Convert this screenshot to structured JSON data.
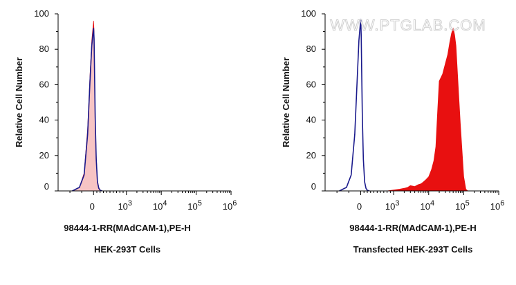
{
  "watermark": "WWW.PTGLAB.COM",
  "colors": {
    "isotype_fill": "#f7c4c4",
    "isotype_line": "#1a1a8c",
    "sample_fill": "#e81010",
    "sample_line": "#1a1a8c",
    "axis": "#000000"
  },
  "chart_data": [
    {
      "type": "area",
      "title": "",
      "caption": "HEK-293T Cells",
      "xlabel": "98444-1-RR(MAdCAM-1),PE-H",
      "ylabel": "Relative Cell Number",
      "x_scale": "biexponential",
      "xlim": [
        -300,
        1000000
      ],
      "ylim": [
        0,
        100
      ],
      "y_ticks": [
        "0",
        "20",
        "40",
        "60",
        "80",
        "100"
      ],
      "x_ticks": [
        {
          "base": "0",
          "exp": ""
        },
        {
          "base": "10",
          "exp": "3"
        },
        {
          "base": "10",
          "exp": "4"
        },
        {
          "base": "10",
          "exp": "5"
        },
        {
          "base": "10",
          "exp": "6"
        }
      ],
      "series": [
        {
          "style": "filled-red",
          "x": [
            -180,
            -120,
            -80,
            -50,
            -30,
            -15,
            0,
            15,
            30,
            50,
            80,
            120,
            160,
            200,
            260
          ],
          "y": [
            0,
            2,
            10,
            35,
            65,
            85,
            96,
            90,
            70,
            45,
            20,
            6,
            2,
            0.5,
            0
          ]
        },
        {
          "style": "filled-pink",
          "x": [
            -180,
            -120,
            -80,
            -50,
            -30,
            -15,
            0,
            15,
            30,
            50,
            80,
            120,
            160,
            200,
            260
          ],
          "y": [
            0,
            2,
            9,
            32,
            62,
            82,
            92,
            86,
            67,
            42,
            18,
            5,
            1.5,
            0.4,
            0
          ]
        },
        {
          "style": "outline",
          "x": [
            -180,
            -120,
            -80,
            -50,
            -30,
            -15,
            0,
            15,
            30,
            50,
            80,
            120,
            160,
            200,
            260
          ],
          "y": [
            0,
            2,
            9,
            32,
            62,
            82,
            92,
            86,
            67,
            42,
            18,
            5,
            1.5,
            0.4,
            0
          ]
        }
      ]
    },
    {
      "type": "area",
      "title": "",
      "caption": "Transfected HEK-293T Cells",
      "xlabel": "98444-1-RR(MAdCAM-1),PE-H",
      "ylabel": "Relative Cell Number",
      "x_scale": "biexponential",
      "xlim": [
        -300,
        1000000
      ],
      "ylim": [
        0,
        100
      ],
      "y_ticks": [
        "0",
        "20",
        "40",
        "60",
        "80",
        "100"
      ],
      "x_ticks": [
        {
          "base": "0",
          "exp": ""
        },
        {
          "base": "10",
          "exp": "3"
        },
        {
          "base": "10",
          "exp": "4"
        },
        {
          "base": "10",
          "exp": "5"
        },
        {
          "base": "10",
          "exp": "6"
        }
      ],
      "series": [
        {
          "style": "filled-red",
          "x": [
            800,
            1000,
            1500,
            2000,
            2500,
            3000,
            4000,
            5000,
            6000,
            7000,
            8000,
            10000,
            12000,
            14000,
            16000,
            18000,
            20000,
            25000,
            30000,
            35000,
            40000,
            45000,
            50000,
            55000,
            60000,
            70000,
            80000,
            90000,
            100000,
            115000,
            130000
          ],
          "y": [
            0,
            0.5,
            1,
            1.5,
            2,
            3,
            2.5,
            3.5,
            4,
            5,
            6,
            8,
            12,
            17,
            25,
            45,
            62,
            66,
            72,
            77,
            84,
            89,
            92,
            88,
            82,
            58,
            38,
            22,
            8,
            1,
            0
          ]
        },
        {
          "style": "outline",
          "x": [
            -180,
            -120,
            -80,
            -50,
            -30,
            -15,
            0,
            15,
            30,
            50,
            80,
            120,
            160,
            200,
            260
          ],
          "y": [
            0,
            2,
            9,
            32,
            62,
            85,
            97,
            88,
            68,
            43,
            18,
            5,
            1.5,
            0.4,
            0
          ]
        }
      ]
    }
  ]
}
